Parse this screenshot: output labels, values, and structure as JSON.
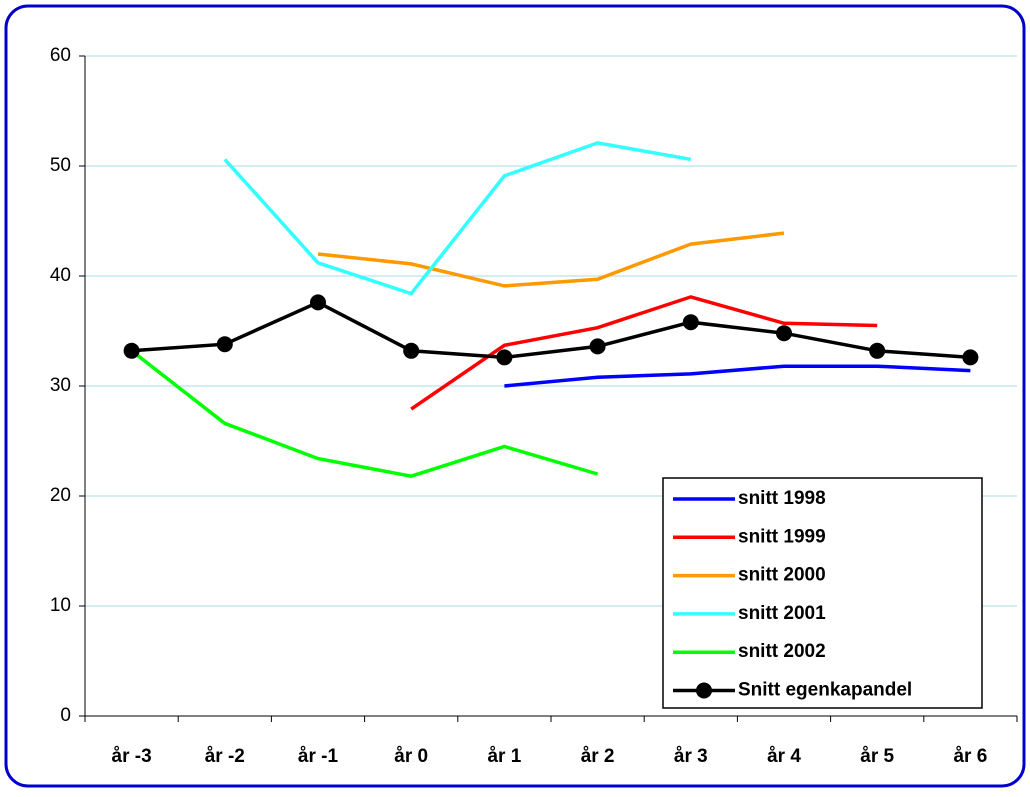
{
  "chart_data": {
    "type": "line",
    "categories": [
      "år -3",
      "år -2",
      "år -1",
      "år 0",
      "år 1",
      "år 2",
      "år 3",
      "år 4",
      "år 5",
      "år 6"
    ],
    "series": [
      {
        "name": "snitt 1998",
        "color": "#0000ff",
        "values": [
          null,
          null,
          null,
          null,
          30.0,
          30.8,
          31.1,
          31.8,
          31.8,
          31.4
        ]
      },
      {
        "name": "snitt 1999",
        "color": "#ff0000",
        "values": [
          null,
          null,
          null,
          27.9,
          33.7,
          35.3,
          38.1,
          35.7,
          35.5,
          null
        ]
      },
      {
        "name": "snitt 2000",
        "color": "#ff9900",
        "values": [
          null,
          null,
          42.0,
          41.1,
          39.1,
          39.7,
          42.9,
          43.9,
          null,
          null
        ]
      },
      {
        "name": "snitt 2001",
        "color": "#33ffff",
        "values": [
          null,
          50.6,
          41.2,
          38.4,
          49.1,
          52.1,
          50.6,
          null,
          null,
          null
        ]
      },
      {
        "name": "snitt 2002",
        "color": "#00ff00",
        "values": [
          33.2,
          26.6,
          23.4,
          21.8,
          24.5,
          22.0,
          null,
          null,
          null,
          null
        ]
      },
      {
        "name": "Snitt egenkapandel",
        "color": "#000000",
        "marker": "circle",
        "values": [
          33.2,
          33.8,
          37.6,
          33.2,
          32.6,
          33.6,
          35.8,
          34.8,
          33.2,
          32.6
        ]
      }
    ],
    "ylim": [
      0,
      60
    ],
    "yticks": [
      0,
      10,
      20,
      30,
      40,
      50,
      60
    ],
    "grid": true,
    "legend": "lower right"
  }
}
